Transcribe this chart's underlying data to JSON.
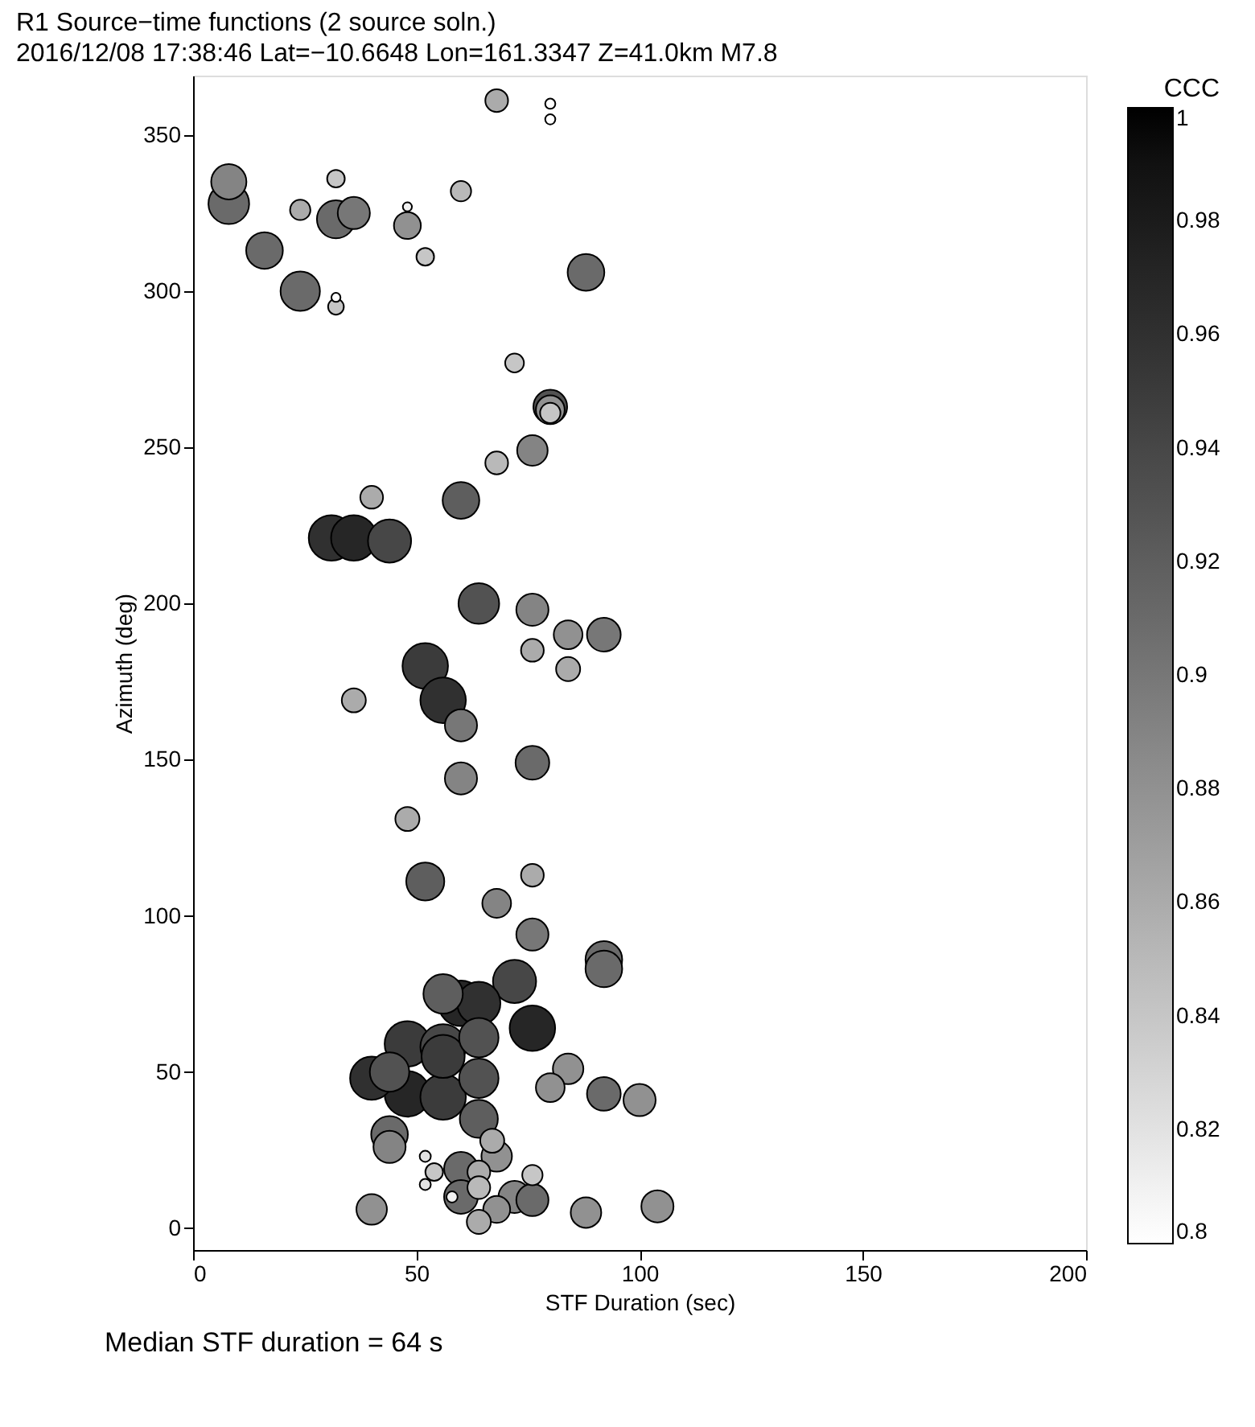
{
  "chart_data": {
    "type": "bubble",
    "title": "R1 Source−time functions (2 source soln.)",
    "subtitle": "2016/12/08 17:38:46  Lat=−10.6648 Lon=161.3347  Z=41.0km  M7.8",
    "xlabel": "STF Duration (sec)",
    "ylabel": "Azimuth (deg)",
    "clabel": "CCC",
    "annotations": [
      "Median STF duration = 64 s"
    ],
    "xlim": [
      0,
      200
    ],
    "xticks": [
      0,
      50,
      100,
      150,
      200
    ],
    "ylim": [
      -7,
      369
    ],
    "yticks": [
      0,
      50,
      100,
      150,
      200,
      250,
      300,
      350
    ],
    "clim": [
      0.8,
      1
    ],
    "cticks": [
      0.8,
      0.82,
      0.84,
      0.86,
      0.88,
      0.9,
      0.92,
      0.94,
      0.96,
      0.98,
      1
    ],
    "grid": false,
    "legend": false,
    "marker": "circle",
    "series": [
      {
        "x": [
          68,
          80,
          80,
          8,
          8,
          24,
          32,
          48,
          48,
          60,
          52,
          32,
          36,
          16,
          24,
          32,
          32,
          88,
          72,
          80,
          80,
          80,
          76,
          68,
          40,
          60,
          31,
          36,
          44,
          64,
          76,
          84,
          92,
          76,
          84,
          52,
          56,
          60,
          36,
          76,
          60,
          48,
          52,
          76,
          68,
          76,
          92,
          92,
          72,
          76,
          56,
          60,
          64,
          64,
          48,
          56,
          56,
          40,
          44,
          48,
          56,
          64,
          64,
          44,
          44,
          80,
          84,
          92,
          100,
          40,
          88,
          104,
          67,
          68,
          52,
          52,
          60,
          64,
          54,
          64,
          60,
          58,
          76,
          72,
          76,
          68,
          64
        ],
        "values": [
          361,
          360,
          355,
          335,
          328,
          326,
          336,
          327,
          321,
          332,
          311,
          323,
          325,
          313,
          300,
          295,
          298,
          306,
          277,
          263,
          262,
          261,
          249,
          245,
          234,
          233,
          221,
          221,
          220,
          200,
          198,
          190,
          190,
          185,
          179,
          180,
          169,
          161,
          169,
          149,
          144,
          131,
          111,
          113,
          104,
          94,
          86,
          83,
          79,
          64,
          75,
          72,
          72,
          61,
          59,
          58,
          55,
          48,
          50,
          43,
          42,
          48,
          35,
          30,
          26,
          45,
          51,
          43,
          41,
          6,
          5,
          7,
          28,
          23,
          23,
          14,
          19,
          18,
          18,
          13,
          10,
          10,
          17,
          10,
          9,
          6,
          2
        ],
        "sizes": [
          0.25,
          0.05,
          0.05,
          0.6,
          0.8,
          0.2,
          0.15,
          0.04,
          0.35,
          0.2,
          0.15,
          0.7,
          0.5,
          0.65,
          0.75,
          0.12,
          0.04,
          0.65,
          0.17,
          0.55,
          0.4,
          0.2,
          0.45,
          0.25,
          0.25,
          0.65,
          1,
          1,
          0.9,
          0.8,
          0.5,
          0.4,
          0.55,
          0.25,
          0.28,
          1,
          1,
          0.5,
          0.28,
          0.55,
          0.5,
          0.28,
          0.7,
          0.25,
          0.4,
          0.5,
          0.65,
          0.65,
          0.9,
          1,
          0.75,
          1,
          0.9,
          0.75,
          1,
          1,
          0.9,
          0.9,
          0.75,
          1,
          1,
          0.75,
          0.7,
          0.65,
          0.5,
          0.4,
          0.45,
          0.55,
          0.5,
          0.45,
          0.45,
          0.5,
          0.28,
          0.45,
          0.06,
          0.06,
          0.55,
          0.25,
          0.15,
          0.25,
          0.55,
          0.06,
          0.2,
          0.5,
          0.5,
          0.35,
          0.28
        ],
        "cvalues": [
          0.86,
          0.8,
          0.8,
          0.89,
          0.91,
          0.86,
          0.84,
          0.81,
          0.88,
          0.85,
          0.84,
          0.91,
          0.9,
          0.91,
          0.91,
          0.84,
          0.8,
          0.91,
          0.84,
          0.93,
          0.88,
          0.84,
          0.89,
          0.85,
          0.86,
          0.92,
          0.96,
          0.97,
          0.94,
          0.93,
          0.89,
          0.88,
          0.9,
          0.86,
          0.86,
          0.95,
          0.96,
          0.9,
          0.86,
          0.91,
          0.89,
          0.86,
          0.92,
          0.86,
          0.89,
          0.9,
          0.91,
          0.91,
          0.94,
          0.97,
          0.92,
          0.97,
          0.96,
          0.93,
          0.95,
          0.94,
          0.95,
          0.96,
          0.93,
          0.97,
          0.95,
          0.93,
          0.92,
          0.91,
          0.89,
          0.88,
          0.88,
          0.91,
          0.88,
          0.88,
          0.88,
          0.88,
          0.86,
          0.88,
          0.82,
          0.82,
          0.91,
          0.86,
          0.84,
          0.85,
          0.91,
          0.81,
          0.84,
          0.89,
          0.91,
          0.88,
          0.86
        ]
      }
    ]
  }
}
